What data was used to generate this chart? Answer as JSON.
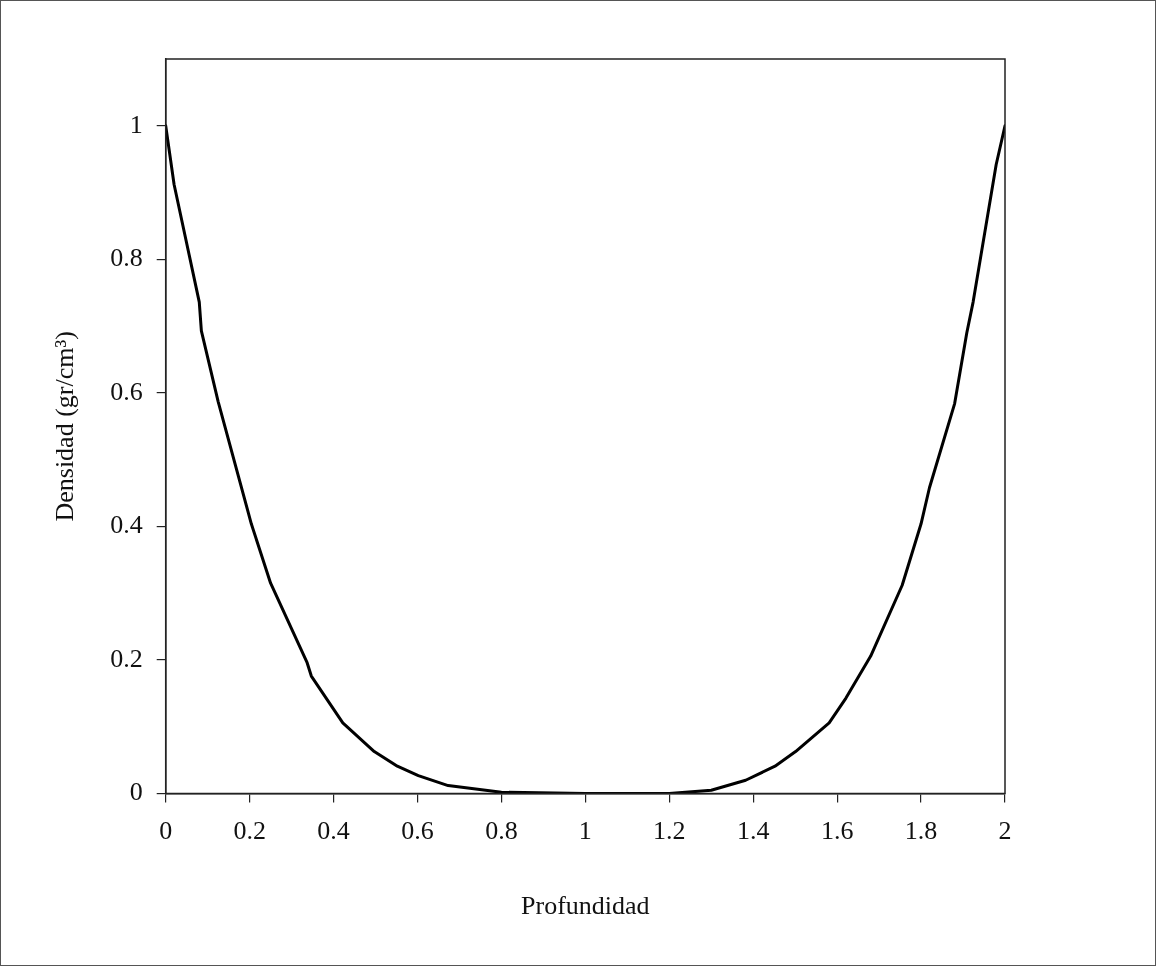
{
  "chart_data": {
    "type": "line",
    "xlabel": "Profundidad",
    "ylabel": "Densidad (gr/cm³)",
    "xlim": [
      0,
      2
    ],
    "ylim": [
      0,
      1.1
    ],
    "xticks": [
      0,
      0.2,
      0.4,
      0.6,
      0.8,
      1,
      1.2,
      1.4,
      1.6,
      1.8,
      2
    ],
    "yticks": [
      0,
      0.2,
      0.4,
      0.6,
      0.8,
      1
    ],
    "grid": false,
    "legend": false,
    "marker": "none",
    "line_style": "solid",
    "series": [
      {
        "color": "#000000",
        "x": [
          0,
          0.02,
          0.08,
          0.085,
          0.125,
          0.204,
          0.25,
          0.337,
          0.347,
          0.422,
          0.497,
          0.552,
          0.602,
          0.673,
          0.8,
          1,
          1.2,
          1.3,
          1.382,
          1.452,
          1.501,
          1.581,
          1.621,
          1.68,
          1.755,
          1.8,
          1.82,
          1.88,
          1.909,
          1.924,
          1.979,
          2
        ],
        "values": [
          1,
          0.912,
          0.736,
          0.693,
          0.587,
          0.404,
          0.315,
          0.196,
          0.176,
          0.106,
          0.063,
          0.041,
          0.027,
          0.012,
          0.002,
          0,
          0,
          0.005,
          0.02,
          0.041,
          0.063,
          0.106,
          0.143,
          0.206,
          0.312,
          0.404,
          0.458,
          0.584,
          0.69,
          0.736,
          0.942,
          1
        ]
      }
    ]
  }
}
